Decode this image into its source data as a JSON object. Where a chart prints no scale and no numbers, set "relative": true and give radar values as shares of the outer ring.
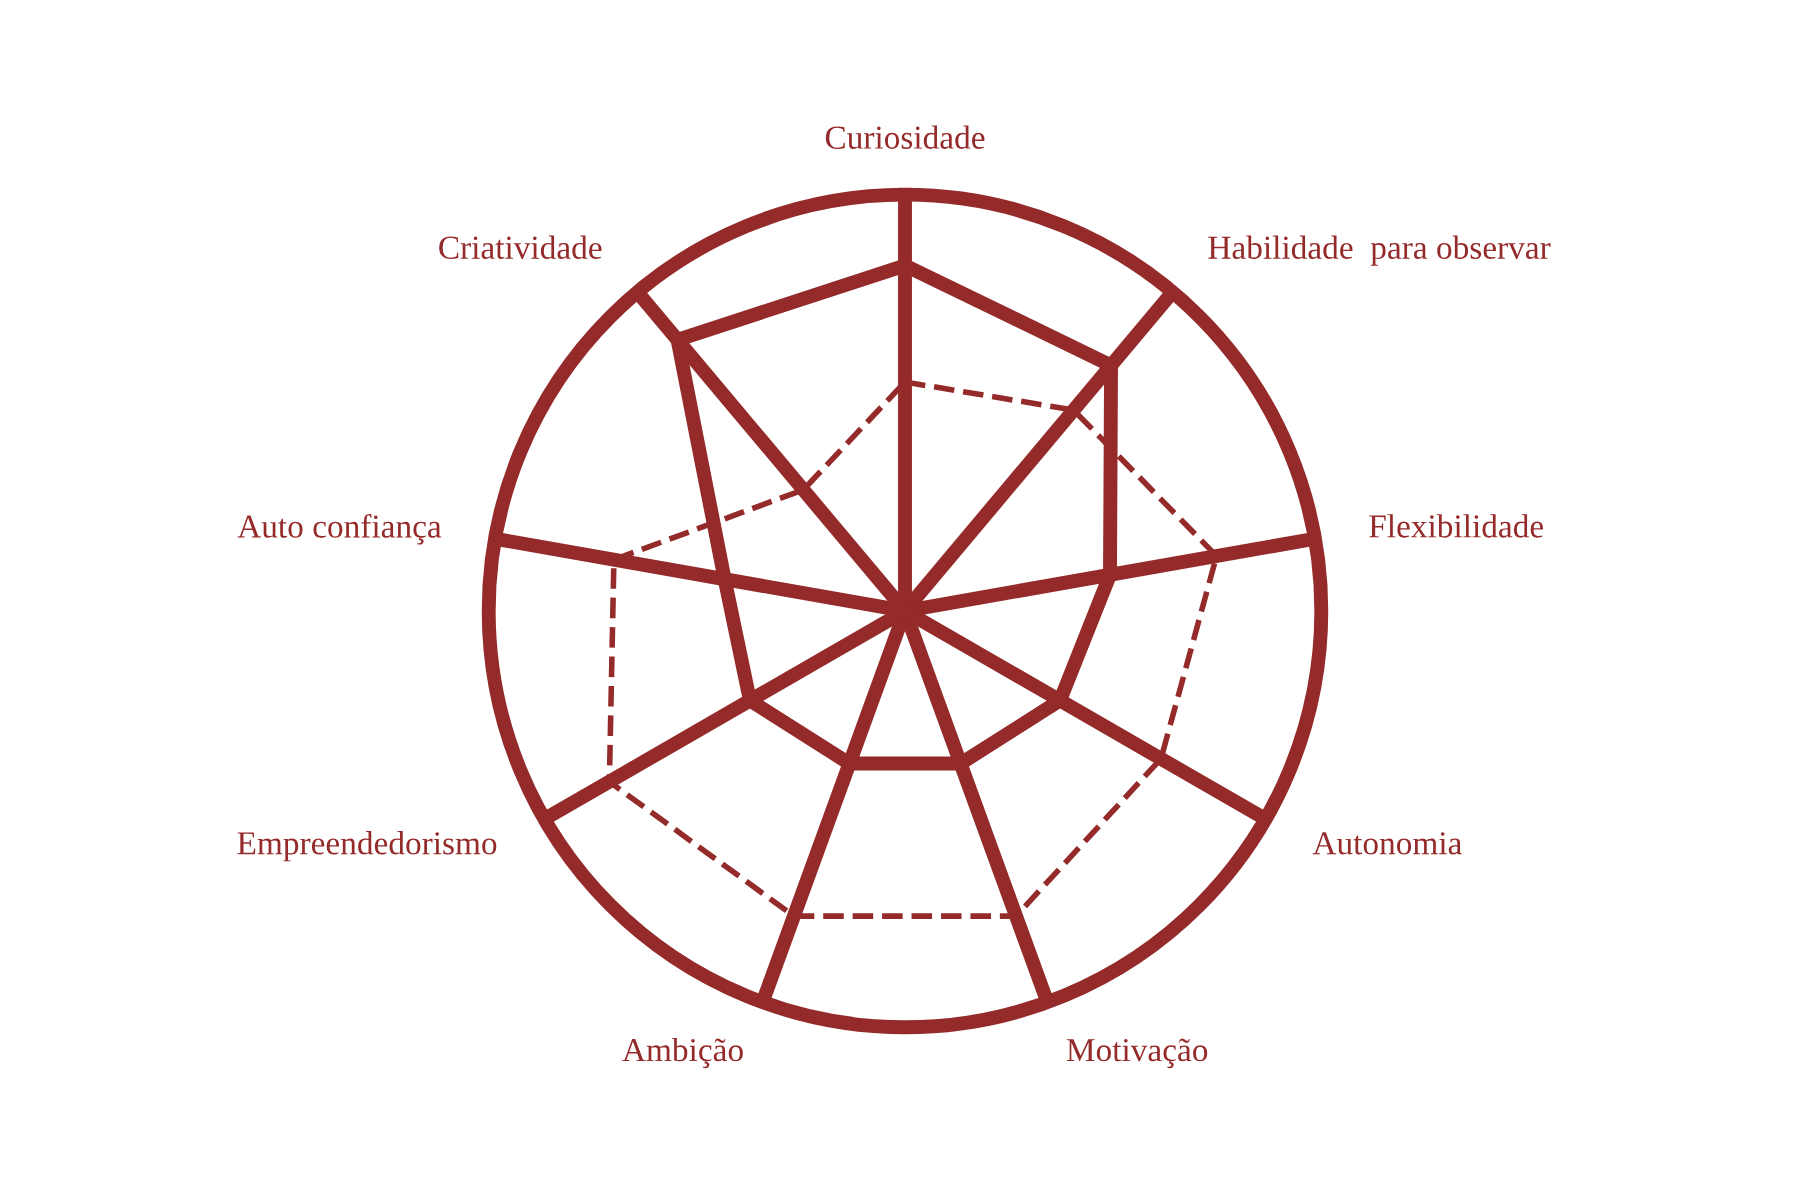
{
  "chart_data": {
    "type": "radar",
    "relative": true,
    "categories": [
      "Curiosidade",
      "Habilidade  para observar",
      "Flexibilidade",
      "Autonomia",
      "Motivação",
      "Ambição",
      "Empreendedorismo",
      "Auto confiança",
      "Criatividade"
    ],
    "series": [
      {
        "color": "#952a2a",
        "line_style": "solid",
        "values": [
          0.83,
          0.77,
          0.5,
          0.43,
          0.39,
          0.39,
          0.43,
          0.44,
          0.85
        ]
      },
      {
        "color": "#952a2a",
        "line_style": "dashed",
        "values": [
          0.55,
          0.63,
          0.76,
          0.71,
          0.78,
          0.78,
          0.82,
          0.71,
          0.38
        ]
      }
    ],
    "grid": "x",
    "legend": false,
    "marker": "none"
  }
}
